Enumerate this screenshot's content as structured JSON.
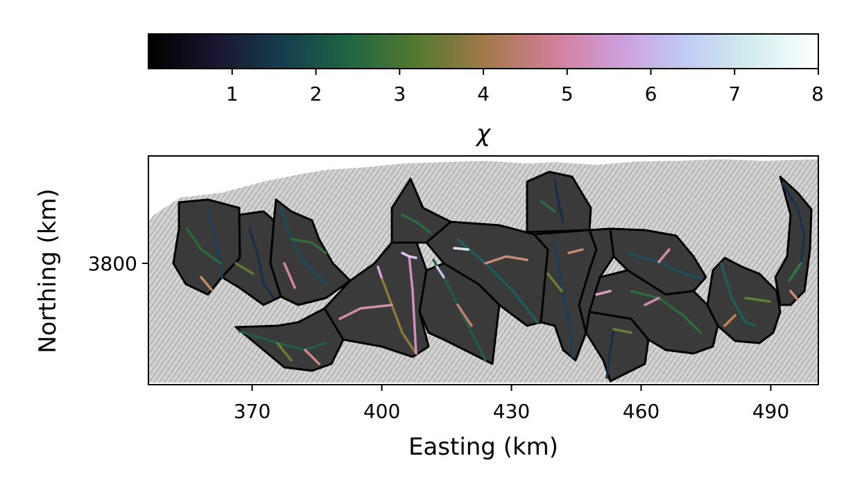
{
  "colorbar": {
    "label": "χ",
    "ticks": [
      "1",
      "2",
      "3",
      "4",
      "5",
      "6",
      "7",
      "8"
    ],
    "tick_values": [
      1,
      2,
      3,
      4,
      5,
      6,
      7,
      8
    ],
    "range": [
      0,
      8
    ],
    "colormap": "cubehelix",
    "colors": [
      "#000000",
      "#1a1530",
      "#163d4e",
      "#1f6642",
      "#54792f",
      "#a07949",
      "#d07e93",
      "#cf9cda",
      "#c1caf3",
      "#d2eeef",
      "#ffffff"
    ]
  },
  "map": {
    "xlabel": "Easting (km)",
    "ylabel": "Northing (km)",
    "xticks": [
      "370",
      "400",
      "430",
      "460",
      "490"
    ],
    "xtick_values": [
      370,
      400,
      430,
      460,
      490
    ],
    "yticks": [
      "3800"
    ],
    "ytick_values": [
      3800
    ],
    "xlim": [
      346,
      501
    ],
    "basemap": "hillshade (grey)",
    "basin_fill": "#3a3a3a",
    "basin_outline": "#000000"
  }
}
